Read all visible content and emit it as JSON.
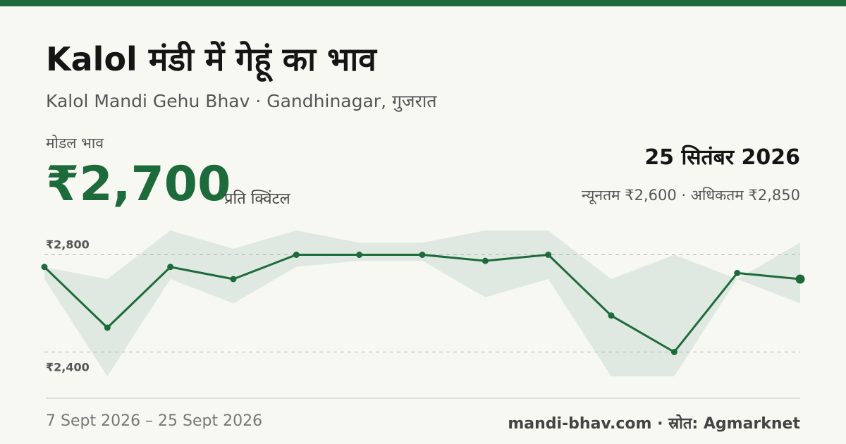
{
  "header": {
    "title": "Kalol मंडी में गेहूं का भाव",
    "subtitle": "Kalol Mandi Gehu Bhav · Gandhinagar, गुजरात"
  },
  "summary": {
    "modal_label": "मोडल भाव",
    "modal_price": "₹2,700",
    "unit": "प्रति क्विंटल",
    "date": "25 सितंबर 2026",
    "min_max": "न्यूनतम ₹2,600 · अधिकतम ₹2,850"
  },
  "footer": {
    "date_range": "7 Sept 2026 – 25 Sept 2026",
    "source": "mandi-bhav.com · स्रोत: Agmarknet"
  },
  "colors": {
    "accent": "#1d6b3a",
    "band": "#dfe9e2",
    "background": "#f8f8f3"
  },
  "chart_data": {
    "type": "line",
    "ytick_labels": [
      "₹2,800",
      "₹2,400"
    ],
    "yticks": [
      2800,
      2400
    ],
    "ylim": [
      2300,
      2900
    ],
    "grid": true,
    "series": [
      {
        "values": [
          2750,
          2500,
          2750,
          2700,
          2800,
          2800,
          2800,
          2775,
          2800,
          2550,
          2400,
          2725,
          2700
        ]
      }
    ],
    "band_min": [
      2700,
      2300,
      2700,
      2600,
      2750,
      2775,
      2775,
      2625,
      2700,
      2300,
      2300,
      2700,
      2600
    ],
    "band_max": [
      2750,
      2700,
      2900,
      2825,
      2900,
      2850,
      2850,
      2900,
      2900,
      2700,
      2800,
      2700,
      2850
    ]
  }
}
